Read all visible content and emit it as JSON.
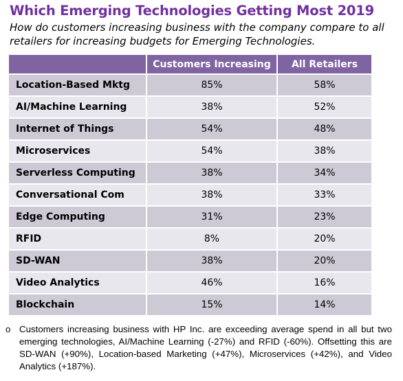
{
  "title": "Which Emerging Technologies Getting Most 2019",
  "subtitle": "How do customers increasing business with the company compare to all retailers for increasing budgets for Emerging Technologies.",
  "chart_data": {
    "type": "table",
    "columns": [
      "",
      "Customers Increasing",
      "All Retailers"
    ],
    "rows": [
      {
        "label": "Location-Based Mktg",
        "values": [
          "85%",
          "58%"
        ]
      },
      {
        "label": "AI/Machine Learning",
        "values": [
          "38%",
          "52%"
        ]
      },
      {
        "label": "Internet of Things",
        "values": [
          "54%",
          "48%"
        ]
      },
      {
        "label": "Microservices",
        "values": [
          "54%",
          "38%"
        ]
      },
      {
        "label": "Serverless Computing",
        "values": [
          "38%",
          "34%"
        ]
      },
      {
        "label": "Conversational Com",
        "values": [
          "38%",
          "33%"
        ]
      },
      {
        "label": "Edge Computing",
        "values": [
          "31%",
          "23%"
        ]
      },
      {
        "label": "RFID",
        "values": [
          "8%",
          "20%"
        ]
      },
      {
        "label": "SD-WAN",
        "values": [
          "38%",
          "20%"
        ]
      },
      {
        "label": "Video Analytics",
        "values": [
          "46%",
          "16%"
        ]
      },
      {
        "label": "Blockchain",
        "values": [
          "15%",
          "14%"
        ]
      }
    ]
  },
  "note": {
    "bullet": "o",
    "text": "Customers increasing business with HP Inc. are exceeding average spend in all but two emerging technologies, AI/Machine Learning (-27%) and RFID (-60%). Offsetting this are SD-WAN (+90%), Location-based Marketing (+47%), Microservices (+42%), and Video Analytics (+187%)."
  },
  "colors": {
    "title": "#7030a0",
    "header_bg": "#8064a2",
    "row_dark": "#cdcad6",
    "row_light": "#e8e7ed"
  }
}
